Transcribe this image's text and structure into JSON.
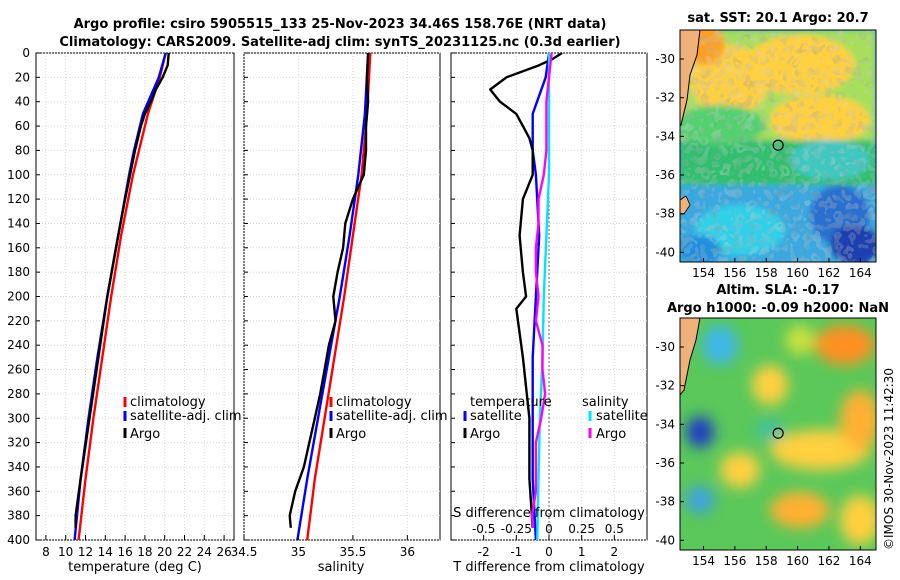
{
  "title": {
    "line1": "Argo profile: csiro 5905515_133 25-Nov-2023 34.46S 158.76E (NRT data)",
    "line2": "Climatology: CARS2009. Satellite-adj clim: synTS_20231125.nc (0.3d earlier)"
  },
  "stamp": "©IMOS 30-Nov-2023 11:42:30",
  "colors": {
    "climatology": "#ff0000",
    "satellite": "#0000ff",
    "argo": "#000000",
    "sal_satellite": "#00e5ff",
    "sal_argo": "#ff00ff",
    "zero_line": "#666666"
  },
  "chart_data": [
    {
      "type": "line",
      "name": "temperature-profile",
      "xlabel": "temperature (deg C)",
      "ylabel": "",
      "xlim": [
        7,
        27
      ],
      "ylim": [
        400,
        0
      ],
      "xticks": [
        8,
        10,
        12,
        14,
        16,
        18,
        20,
        22,
        24,
        26
      ],
      "yticks": [
        0,
        20,
        40,
        60,
        80,
        100,
        120,
        140,
        160,
        180,
        200,
        220,
        240,
        260,
        280,
        300,
        320,
        340,
        360,
        380,
        400
      ],
      "grid": true,
      "legend": {
        "position": "right-middle",
        "entries": [
          "climatology",
          "satellite-adj. clim",
          "Argo"
        ]
      },
      "series": [
        {
          "name": "climatology",
          "depth": [
            0,
            20,
            50,
            80,
            100,
            150,
            200,
            250,
            300,
            350,
            400
          ],
          "values": [
            20.1,
            19.5,
            18.3,
            17.4,
            16.8,
            15.6,
            14.6,
            13.7,
            12.8,
            12.0,
            11.3
          ]
        },
        {
          "name": "satellite-adj. clim",
          "depth": [
            0,
            20,
            50,
            80,
            100,
            150,
            200,
            250,
            300,
            350,
            400
          ],
          "values": [
            20.1,
            19.4,
            17.8,
            16.9,
            16.4,
            15.3,
            14.2,
            13.2,
            12.3,
            11.5,
            10.9
          ]
        },
        {
          "name": "Argo",
          "depth": [
            0,
            10,
            20,
            30,
            40,
            50,
            60,
            80,
            100,
            120,
            150,
            200,
            250,
            300,
            350,
            380,
            390
          ],
          "values": [
            20.4,
            20.3,
            19.8,
            19.1,
            18.6,
            18.0,
            17.6,
            17.0,
            16.5,
            16.0,
            15.3,
            14.2,
            13.3,
            12.4,
            11.5,
            11.0,
            11.0
          ]
        }
      ]
    },
    {
      "type": "line",
      "name": "salinity-profile",
      "xlabel": "salinity",
      "xlim": [
        34.5,
        36.3
      ],
      "ylim": [
        400,
        0
      ],
      "xticks": [
        34.5,
        35,
        35.5,
        36
      ],
      "xticklabels": [
        "34.5",
        "35",
        "35.5",
        "36"
      ],
      "grid": true,
      "legend": {
        "position": "right-middle",
        "entries": [
          "climatology",
          "satellite-adj. clim",
          "Argo"
        ]
      },
      "series": [
        {
          "name": "climatology",
          "depth": [
            0,
            50,
            100,
            150,
            200,
            250,
            300,
            350,
            400
          ],
          "values": [
            35.66,
            35.63,
            35.58,
            35.5,
            35.42,
            35.33,
            35.24,
            35.15,
            35.08
          ]
        },
        {
          "name": "satellite-adj. clim",
          "depth": [
            0,
            50,
            100,
            150,
            200,
            250,
            300,
            350,
            400
          ],
          "values": [
            35.64,
            35.61,
            35.55,
            35.47,
            35.38,
            35.28,
            35.18,
            35.08,
            34.99
          ]
        },
        {
          "name": "Argo",
          "depth": [
            0,
            20,
            40,
            60,
            80,
            100,
            120,
            140,
            160,
            180,
            200,
            220,
            240,
            260,
            280,
            300,
            320,
            340,
            360,
            380,
            390
          ],
          "values": [
            35.64,
            35.63,
            35.64,
            35.62,
            35.62,
            35.6,
            35.5,
            35.43,
            35.41,
            35.36,
            35.32,
            35.34,
            35.28,
            35.24,
            35.2,
            35.15,
            35.1,
            35.05,
            34.97,
            34.92,
            34.93
          ]
        }
      ]
    },
    {
      "type": "line",
      "name": "difference-profile",
      "xlabel": "T difference from climatology",
      "x2label": "S difference from climatology",
      "xlim": [
        -3,
        3
      ],
      "ylim": [
        400,
        0
      ],
      "xticks": [
        -2,
        -1,
        0,
        1,
        2
      ],
      "xticklabels": [
        "-2",
        "-1",
        "0",
        "1",
        "2"
      ],
      "x2lim": [
        -0.75,
        0.75
      ],
      "x2ticks": [
        -0.5,
        -0.25,
        0,
        0.25,
        0.5
      ],
      "x2ticklabels": [
        "-0.5",
        "-0.25",
        "0",
        "0.25",
        "0.5"
      ],
      "grid": true,
      "legend_temperature": {
        "title": "temperature",
        "entries": [
          "satellite",
          "Argo"
        ]
      },
      "legend_salinity": {
        "title": "salinity",
        "entries": [
          "satellite",
          "Argo"
        ]
      },
      "series": [
        {
          "name": "T satellite",
          "axis": "T",
          "depth": [
            0,
            20,
            50,
            80,
            100,
            150,
            200,
            250,
            300,
            350,
            400
          ],
          "values": [
            0.0,
            -0.1,
            -0.5,
            -0.5,
            -0.4,
            -0.3,
            -0.4,
            -0.5,
            -0.5,
            -0.5,
            -0.4
          ]
        },
        {
          "name": "T Argo",
          "axis": "T",
          "depth": [
            0,
            5,
            10,
            20,
            30,
            40,
            50,
            60,
            70,
            80,
            100,
            120,
            150,
            180,
            200,
            210,
            250,
            300,
            350,
            390
          ],
          "values": [
            0.4,
            0.1,
            -0.3,
            -1.3,
            -1.8,
            -1.5,
            -1.0,
            -0.8,
            -0.6,
            -0.5,
            -0.5,
            -0.8,
            -0.9,
            -0.8,
            -0.7,
            -1.0,
            -0.8,
            -0.6,
            -0.6,
            -0.5
          ]
        },
        {
          "name": "S satellite",
          "axis": "S",
          "depth": [
            0,
            20,
            50,
            100,
            150,
            200,
            250,
            300,
            350,
            400
          ],
          "values": [
            0.0,
            0.0,
            0.0,
            0.0,
            -0.02,
            -0.04,
            -0.05,
            -0.07,
            -0.08,
            -0.09
          ]
        },
        {
          "name": "S Argo",
          "axis": "S",
          "depth": [
            0,
            20,
            40,
            60,
            80,
            100,
            120,
            140,
            160,
            180,
            200,
            220,
            240,
            260,
            280,
            300,
            320,
            340,
            360,
            380,
            390
          ],
          "values": [
            0.02,
            0.0,
            -0.02,
            -0.02,
            -0.02,
            -0.04,
            -0.08,
            -0.08,
            -0.1,
            -0.1,
            -0.08,
            -0.1,
            -0.05,
            -0.05,
            -0.03,
            -0.06,
            -0.1,
            -0.1,
            -0.1,
            -0.13,
            -0.12
          ]
        }
      ]
    },
    {
      "type": "heatmap",
      "name": "sst-map",
      "title": "sat. SST: 20.1 Argo: 20.7",
      "xlim": [
        152.5,
        165
      ],
      "ylim": [
        -40.5,
        -28.5
      ],
      "xticks": [
        154,
        156,
        158,
        160,
        162,
        164
      ],
      "yticks": [
        -30,
        -32,
        -34,
        -36,
        -38,
        -40
      ],
      "marker": {
        "lon": 158.76,
        "lat": -34.46
      }
    },
    {
      "type": "heatmap",
      "name": "sla-map",
      "title": "Altim. SLA: -0.17",
      "subtitle": "Argo h1000: -0.09 h2000: NaN",
      "xlim": [
        152.5,
        165
      ],
      "ylim": [
        -40.5,
        -28.5
      ],
      "xticks": [
        154,
        156,
        158,
        160,
        162,
        164
      ],
      "yticks": [
        -30,
        -32,
        -34,
        -36,
        -38,
        -40
      ],
      "marker": {
        "lon": 158.76,
        "lat": -34.46
      }
    }
  ]
}
